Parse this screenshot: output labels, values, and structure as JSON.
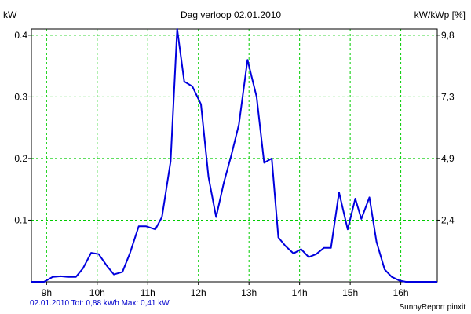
{
  "chart_data": {
    "type": "line",
    "title": "Dag  verloop 02.01.2010",
    "y_left_label": "kW",
    "y_right_label": "kW/kWp [%]",
    "xlim": [
      8.7,
      16.72
    ],
    "ylim": [
      0,
      0.41
    ],
    "x_ticks": [
      9,
      10,
      11,
      12,
      13,
      14,
      15,
      16
    ],
    "x_tick_labels": [
      "9h",
      "10h",
      "11h",
      "12h",
      "13h",
      "14h",
      "15h",
      "16h"
    ],
    "y_left_ticks": [
      0.1,
      0.2,
      0.3,
      0.4
    ],
    "y_left_tick_labels": [
      "0.1",
      "0.2",
      "0.3",
      "0.4"
    ],
    "y_right_ticks": [
      0.1,
      0.2,
      0.3,
      0.4
    ],
    "y_right_tick_labels": [
      "2,4",
      "4,9",
      "7,3",
      "9,8"
    ],
    "grid": true,
    "colors": {
      "line": "#0000dd",
      "grid": "#00cc00",
      "footer_left": "#0000cc",
      "footer_right": "#000000"
    },
    "series": [
      {
        "x": [
          8.7,
          8.95,
          9.12,
          9.28,
          9.42,
          9.58,
          9.72,
          9.88,
          10.03,
          10.2,
          10.33,
          10.5,
          10.65,
          10.82,
          10.97,
          11.15,
          11.28,
          11.45,
          11.58,
          11.72,
          11.88,
          12.05,
          12.2,
          12.35,
          12.5,
          12.65,
          12.8,
          12.97,
          13.15,
          13.3,
          13.45,
          13.58,
          13.72,
          13.88,
          14.03,
          14.18,
          14.33,
          14.48,
          14.62,
          14.78,
          14.95,
          15.1,
          15.22,
          15.38,
          15.52,
          15.68,
          15.82,
          15.97,
          16.1,
          16.25,
          16.4,
          16.55,
          16.72
        ],
        "y": [
          0.0,
          0.0,
          0.008,
          0.009,
          0.008,
          0.008,
          0.022,
          0.047,
          0.045,
          0.025,
          0.012,
          0.016,
          0.047,
          0.09,
          0.09,
          0.085,
          0.105,
          0.195,
          0.41,
          0.325,
          0.317,
          0.288,
          0.17,
          0.105,
          0.16,
          0.205,
          0.255,
          0.36,
          0.3,
          0.193,
          0.2,
          0.072,
          0.058,
          0.046,
          0.053,
          0.04,
          0.045,
          0.055,
          0.055,
          0.145,
          0.085,
          0.135,
          0.102,
          0.137,
          0.065,
          0.02,
          0.008,
          0.002,
          0.0,
          0.0,
          0.0,
          0.0,
          0.0
        ]
      }
    ]
  },
  "footer": {
    "left": "02.01.2010 Tot: 0,88 kWh Max: 0,41 kW",
    "right": "SunnyReport pinxit"
  }
}
